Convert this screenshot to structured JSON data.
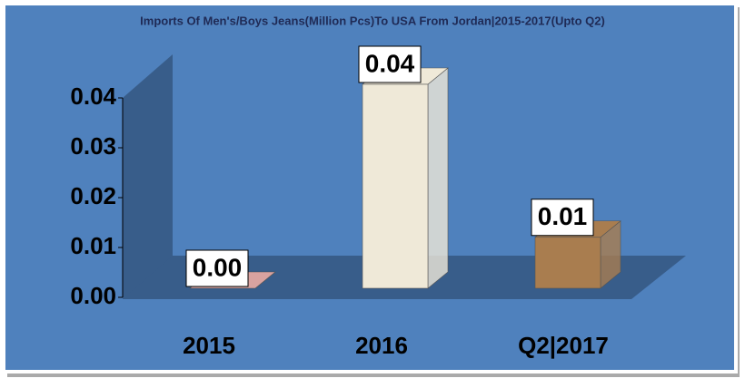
{
  "chart_data": {
    "type": "bar3d",
    "title": "Imports Of Men's/Boys Jeans(Million Pcs)To USA From Jordan|2015-2017(Upto Q2)",
    "categories": [
      "2015",
      "2016",
      "Q2|2017"
    ],
    "values": [
      0,
      0.04,
      0.01
    ],
    "value_labels": [
      "0.00",
      "0.04",
      "0.01"
    ],
    "colors": [
      "#d9a3a0",
      "#efe9d8",
      "#a97d4f"
    ],
    "ylim": [
      0,
      0.04
    ],
    "yticks": [
      {
        "value": 0,
        "label": "0.00"
      },
      0.01,
      0.02,
      0.03,
      0.04
    ]
  }
}
